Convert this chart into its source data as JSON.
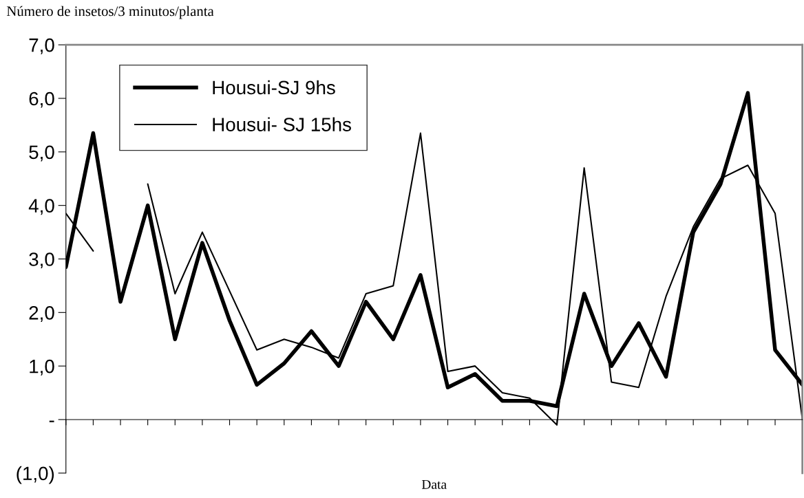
{
  "chart_data": {
    "type": "line",
    "ylabel": "Número de insetos/3 minutos/planta",
    "xlabel": "Data",
    "categories": [
      null,
      null,
      null,
      null,
      null,
      null,
      null,
      null,
      null,
      null,
      null,
      null,
      null,
      null,
      null,
      null,
      null,
      null,
      null,
      null,
      null,
      null,
      null,
      null,
      null,
      null,
      null,
      null
    ],
    "series": [
      {
        "name": "Housui-SJ 9hs",
        "color": "#000000",
        "values": [
          2.85,
          5.35,
          2.2,
          4.0,
          1.5,
          3.3,
          1.85,
          0.65,
          1.05,
          1.65,
          1.0,
          2.2,
          1.5,
          2.7,
          0.6,
          0.85,
          0.35,
          0.35,
          0.25,
          2.35,
          1.0,
          1.8,
          0.8,
          3.5,
          4.4,
          6.1,
          1.3,
          0.65
        ]
      },
      {
        "name": "Housui- SJ 15hs",
        "color": "#000000",
        "values": [
          3.85,
          3.15,
          null,
          4.4,
          2.35,
          3.5,
          2.4,
          1.3,
          1.5,
          1.35,
          1.15,
          2.35,
          2.5,
          5.35,
          0.9,
          1.0,
          0.5,
          0.4,
          -0.1,
          4.7,
          0.7,
          0.6,
          2.3,
          3.6,
          4.5,
          4.75,
          3.85,
          0.0
        ]
      }
    ],
    "ylim": [
      -1,
      7
    ],
    "yticks": [
      {
        "value": -1,
        "label": "(1,0)"
      },
      {
        "value": 0,
        "label": "-"
      },
      {
        "value": 1,
        "label": "1,0"
      },
      {
        "value": 2,
        "label": "2,0"
      },
      {
        "value": 3,
        "label": "3,0"
      },
      {
        "value": 4,
        "label": "4,0"
      },
      {
        "value": 5,
        "label": "5,0"
      },
      {
        "value": 6,
        "label": "6,0"
      },
      {
        "value": 7,
        "label": "7,0"
      }
    ],
    "legend": "top left",
    "marker": "none",
    "line_style": "solid"
  }
}
